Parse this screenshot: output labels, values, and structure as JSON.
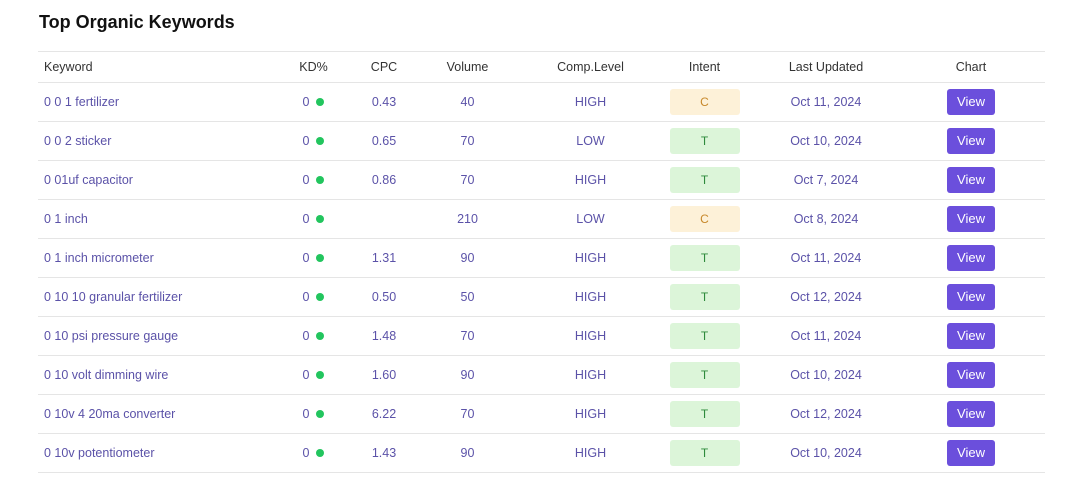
{
  "title": "Top Organic Keywords",
  "colors": {
    "accent": "#6b4fdc",
    "kd_dot": "#22c55e",
    "intent_c_bg": "#fdf1d8",
    "intent_t_bg": "#dcf5d9"
  },
  "table": {
    "headers": {
      "keyword": "Keyword",
      "kd": "KD%",
      "cpc": "CPC",
      "volume": "Volume",
      "comp_level": "Comp.Level",
      "intent": "Intent",
      "last_updated": "Last Updated",
      "chart": "Chart"
    },
    "rows": [
      {
        "keyword": "0 0 1 fertilizer",
        "kd": "0",
        "cpc": "0.43",
        "volume": "40",
        "comp_level": "HIGH",
        "intent": "C",
        "last_updated": "Oct 11, 2024",
        "action": "View"
      },
      {
        "keyword": "0 0 2 sticker",
        "kd": "0",
        "cpc": "0.65",
        "volume": "70",
        "comp_level": "LOW",
        "intent": "T",
        "last_updated": "Oct 10, 2024",
        "action": "View"
      },
      {
        "keyword": "0 01uf capacitor",
        "kd": "0",
        "cpc": "0.86",
        "volume": "70",
        "comp_level": "HIGH",
        "intent": "T",
        "last_updated": "Oct 7, 2024",
        "action": "View"
      },
      {
        "keyword": "0 1 inch",
        "kd": "0",
        "cpc": "",
        "volume": "210",
        "comp_level": "LOW",
        "intent": "C",
        "last_updated": "Oct 8, 2024",
        "action": "View"
      },
      {
        "keyword": "0 1 inch micrometer",
        "kd": "0",
        "cpc": "1.31",
        "volume": "90",
        "comp_level": "HIGH",
        "intent": "T",
        "last_updated": "Oct 11, 2024",
        "action": "View"
      },
      {
        "keyword": "0 10 10 granular fertilizer",
        "kd": "0",
        "cpc": "0.50",
        "volume": "50",
        "comp_level": "HIGH",
        "intent": "T",
        "last_updated": "Oct 12, 2024",
        "action": "View"
      },
      {
        "keyword": "0 10 psi pressure gauge",
        "kd": "0",
        "cpc": "1.48",
        "volume": "70",
        "comp_level": "HIGH",
        "intent": "T",
        "last_updated": "Oct 11, 2024",
        "action": "View"
      },
      {
        "keyword": "0 10 volt dimming wire",
        "kd": "0",
        "cpc": "1.60",
        "volume": "90",
        "comp_level": "HIGH",
        "intent": "T",
        "last_updated": "Oct 10, 2024",
        "action": "View"
      },
      {
        "keyword": "0 10v 4 20ma converter",
        "kd": "0",
        "cpc": "6.22",
        "volume": "70",
        "comp_level": "HIGH",
        "intent": "T",
        "last_updated": "Oct 12, 2024",
        "action": "View"
      },
      {
        "keyword": "0 10v potentiometer",
        "kd": "0",
        "cpc": "1.43",
        "volume": "90",
        "comp_level": "HIGH",
        "intent": "T",
        "last_updated": "Oct 10, 2024",
        "action": "View"
      }
    ]
  }
}
